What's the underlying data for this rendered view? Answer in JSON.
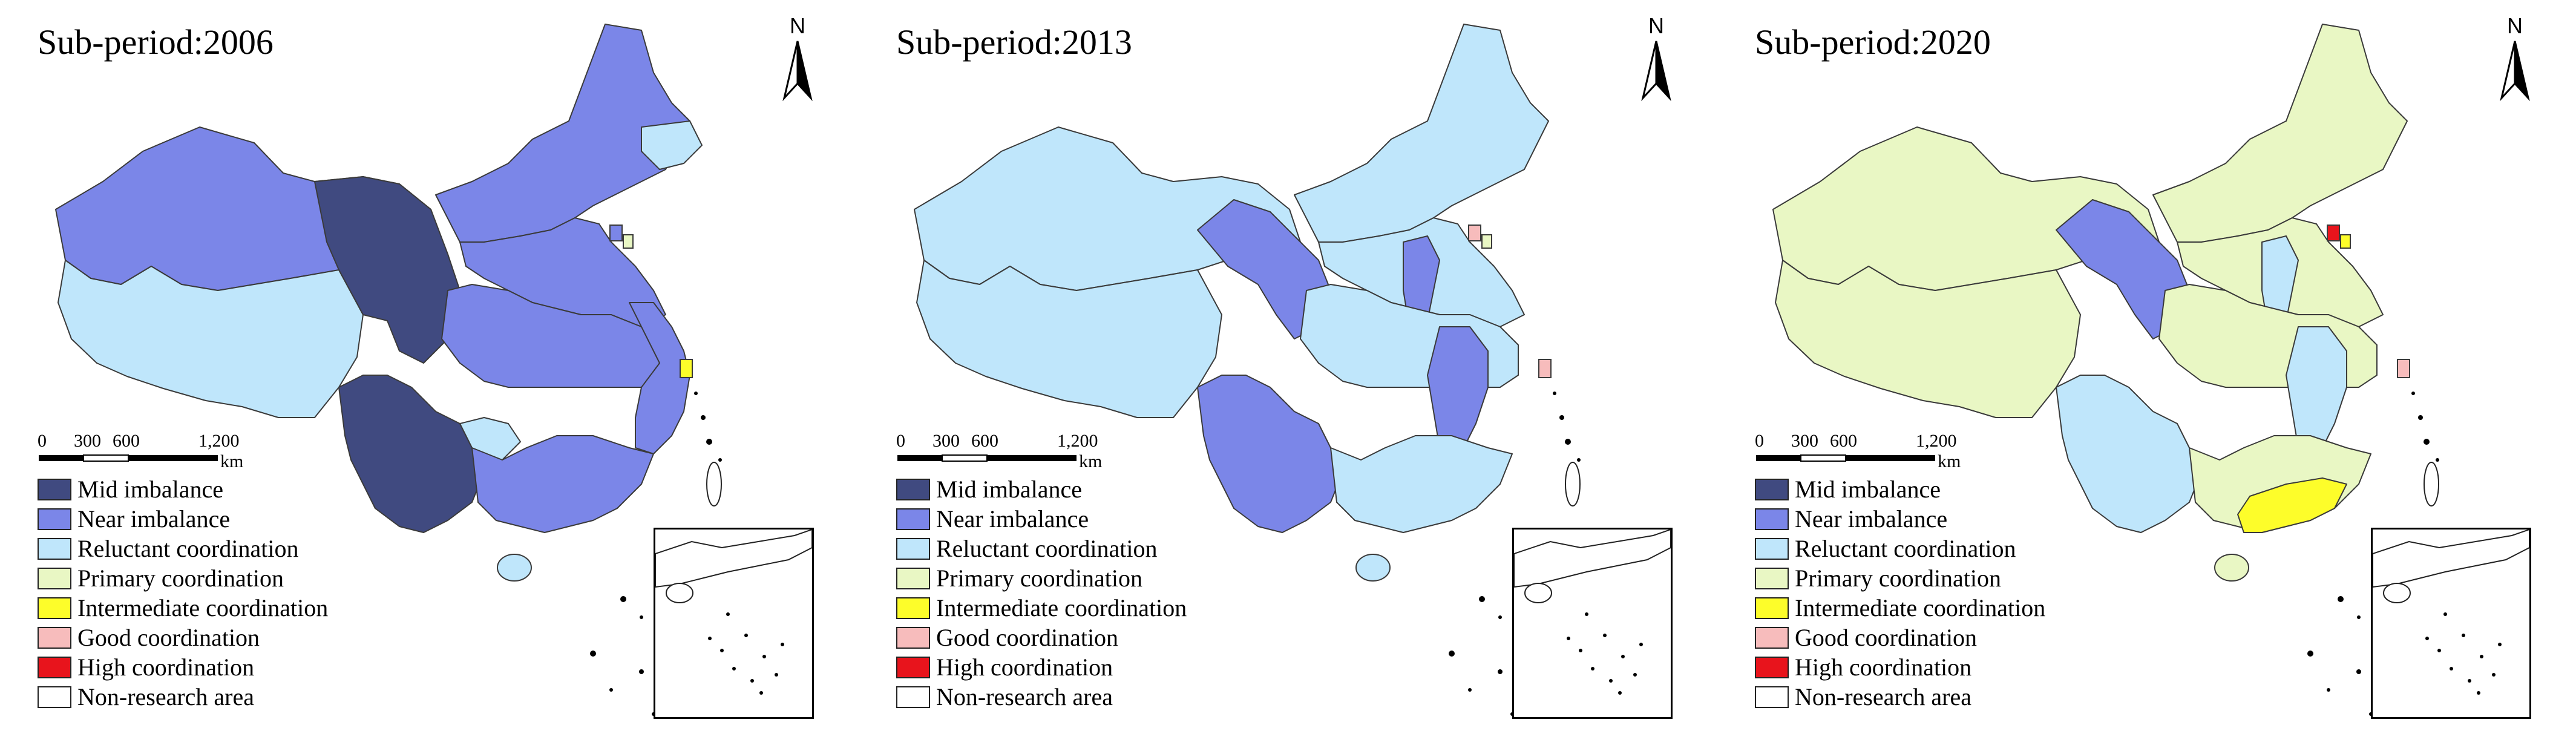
{
  "figure": {
    "panels": [
      {
        "title": "Sub-period:2006",
        "north_label": "N",
        "scale": {
          "ticks": [
            "0",
            "300",
            "600",
            "1,200"
          ],
          "unit": "km"
        },
        "regions": {
          "northwest": "near_imbalance",
          "west": "reluctant_coordination",
          "tibet_highland": "mid_imbalance",
          "northeast": "near_imbalance",
          "far_northeast": "reluctant_coordination",
          "north_china": "near_imbalance",
          "central": "near_imbalance",
          "east": "near_imbalance",
          "southwest": "mid_imbalance",
          "south": "near_imbalance",
          "guizhou": "reluctant_coordination",
          "hainan": "reluctant_coordination",
          "beijing": "near_imbalance",
          "tianjin": "primary_coordination",
          "shanghai": "intermediate_coordination"
        }
      },
      {
        "title": "Sub-period:2013",
        "north_label": "N",
        "scale": {
          "ticks": [
            "0",
            "300",
            "600",
            "1,200"
          ],
          "unit": "km"
        },
        "regions": {
          "northwest": "reluctant_coordination",
          "west": "reluctant_coordination",
          "qinghai_gansu": "near_imbalance",
          "northeast": "reluctant_coordination",
          "north_china": "reluctant_coordination",
          "shanxi": "near_imbalance",
          "central": "reluctant_coordination",
          "jiangxi_anhui": "near_imbalance",
          "southwest": "near_imbalance",
          "south": "reluctant_coordination",
          "hainan": "reluctant_coordination",
          "beijing": "good_coordination",
          "tianjin": "primary_coordination",
          "shanghai": "good_coordination"
        }
      },
      {
        "title": "Sub-period:2020",
        "north_label": "N",
        "scale": {
          "ticks": [
            "0",
            "300",
            "600",
            "1,200"
          ],
          "unit": "km"
        },
        "regions": {
          "northwest": "primary_coordination",
          "west": "primary_coordination",
          "qinghai_gansu": "near_imbalance",
          "northeast": "primary_coordination",
          "north_china": "primary_coordination",
          "shanxi": "reluctant_coordination",
          "central": "primary_coordination",
          "jiangxi_anhui": "reluctant_coordination",
          "southwest": "reluctant_coordination",
          "south": "primary_coordination",
          "guangdong": "intermediate_coordination",
          "hainan": "primary_coordination",
          "beijing": "high_coordination",
          "tianjin": "intermediate_coordination",
          "shanghai": "good_coordination"
        }
      }
    ],
    "legend": [
      {
        "key": "mid_imbalance",
        "label": "Mid imbalance",
        "color": "#404a80"
      },
      {
        "key": "near_imbalance",
        "label": "Near imbalance",
        "color": "#7b86e8"
      },
      {
        "key": "reluctant_coordination",
        "label": "Reluctant coordination",
        "color": "#bfe6fb"
      },
      {
        "key": "primary_coordination",
        "label": "Primary coordination",
        "color": "#e9f7c4"
      },
      {
        "key": "intermediate_coordination",
        "label": "Intermediate coordination",
        "color": "#fdfd2a"
      },
      {
        "key": "good_coordination",
        "label": "Good coordination",
        "color": "#f7bcbc"
      },
      {
        "key": "high_coordination",
        "label": "High coordination",
        "color": "#e8141c"
      },
      {
        "key": "non_research",
        "label": "Non-research area",
        "color": "#ffffff"
      }
    ]
  }
}
